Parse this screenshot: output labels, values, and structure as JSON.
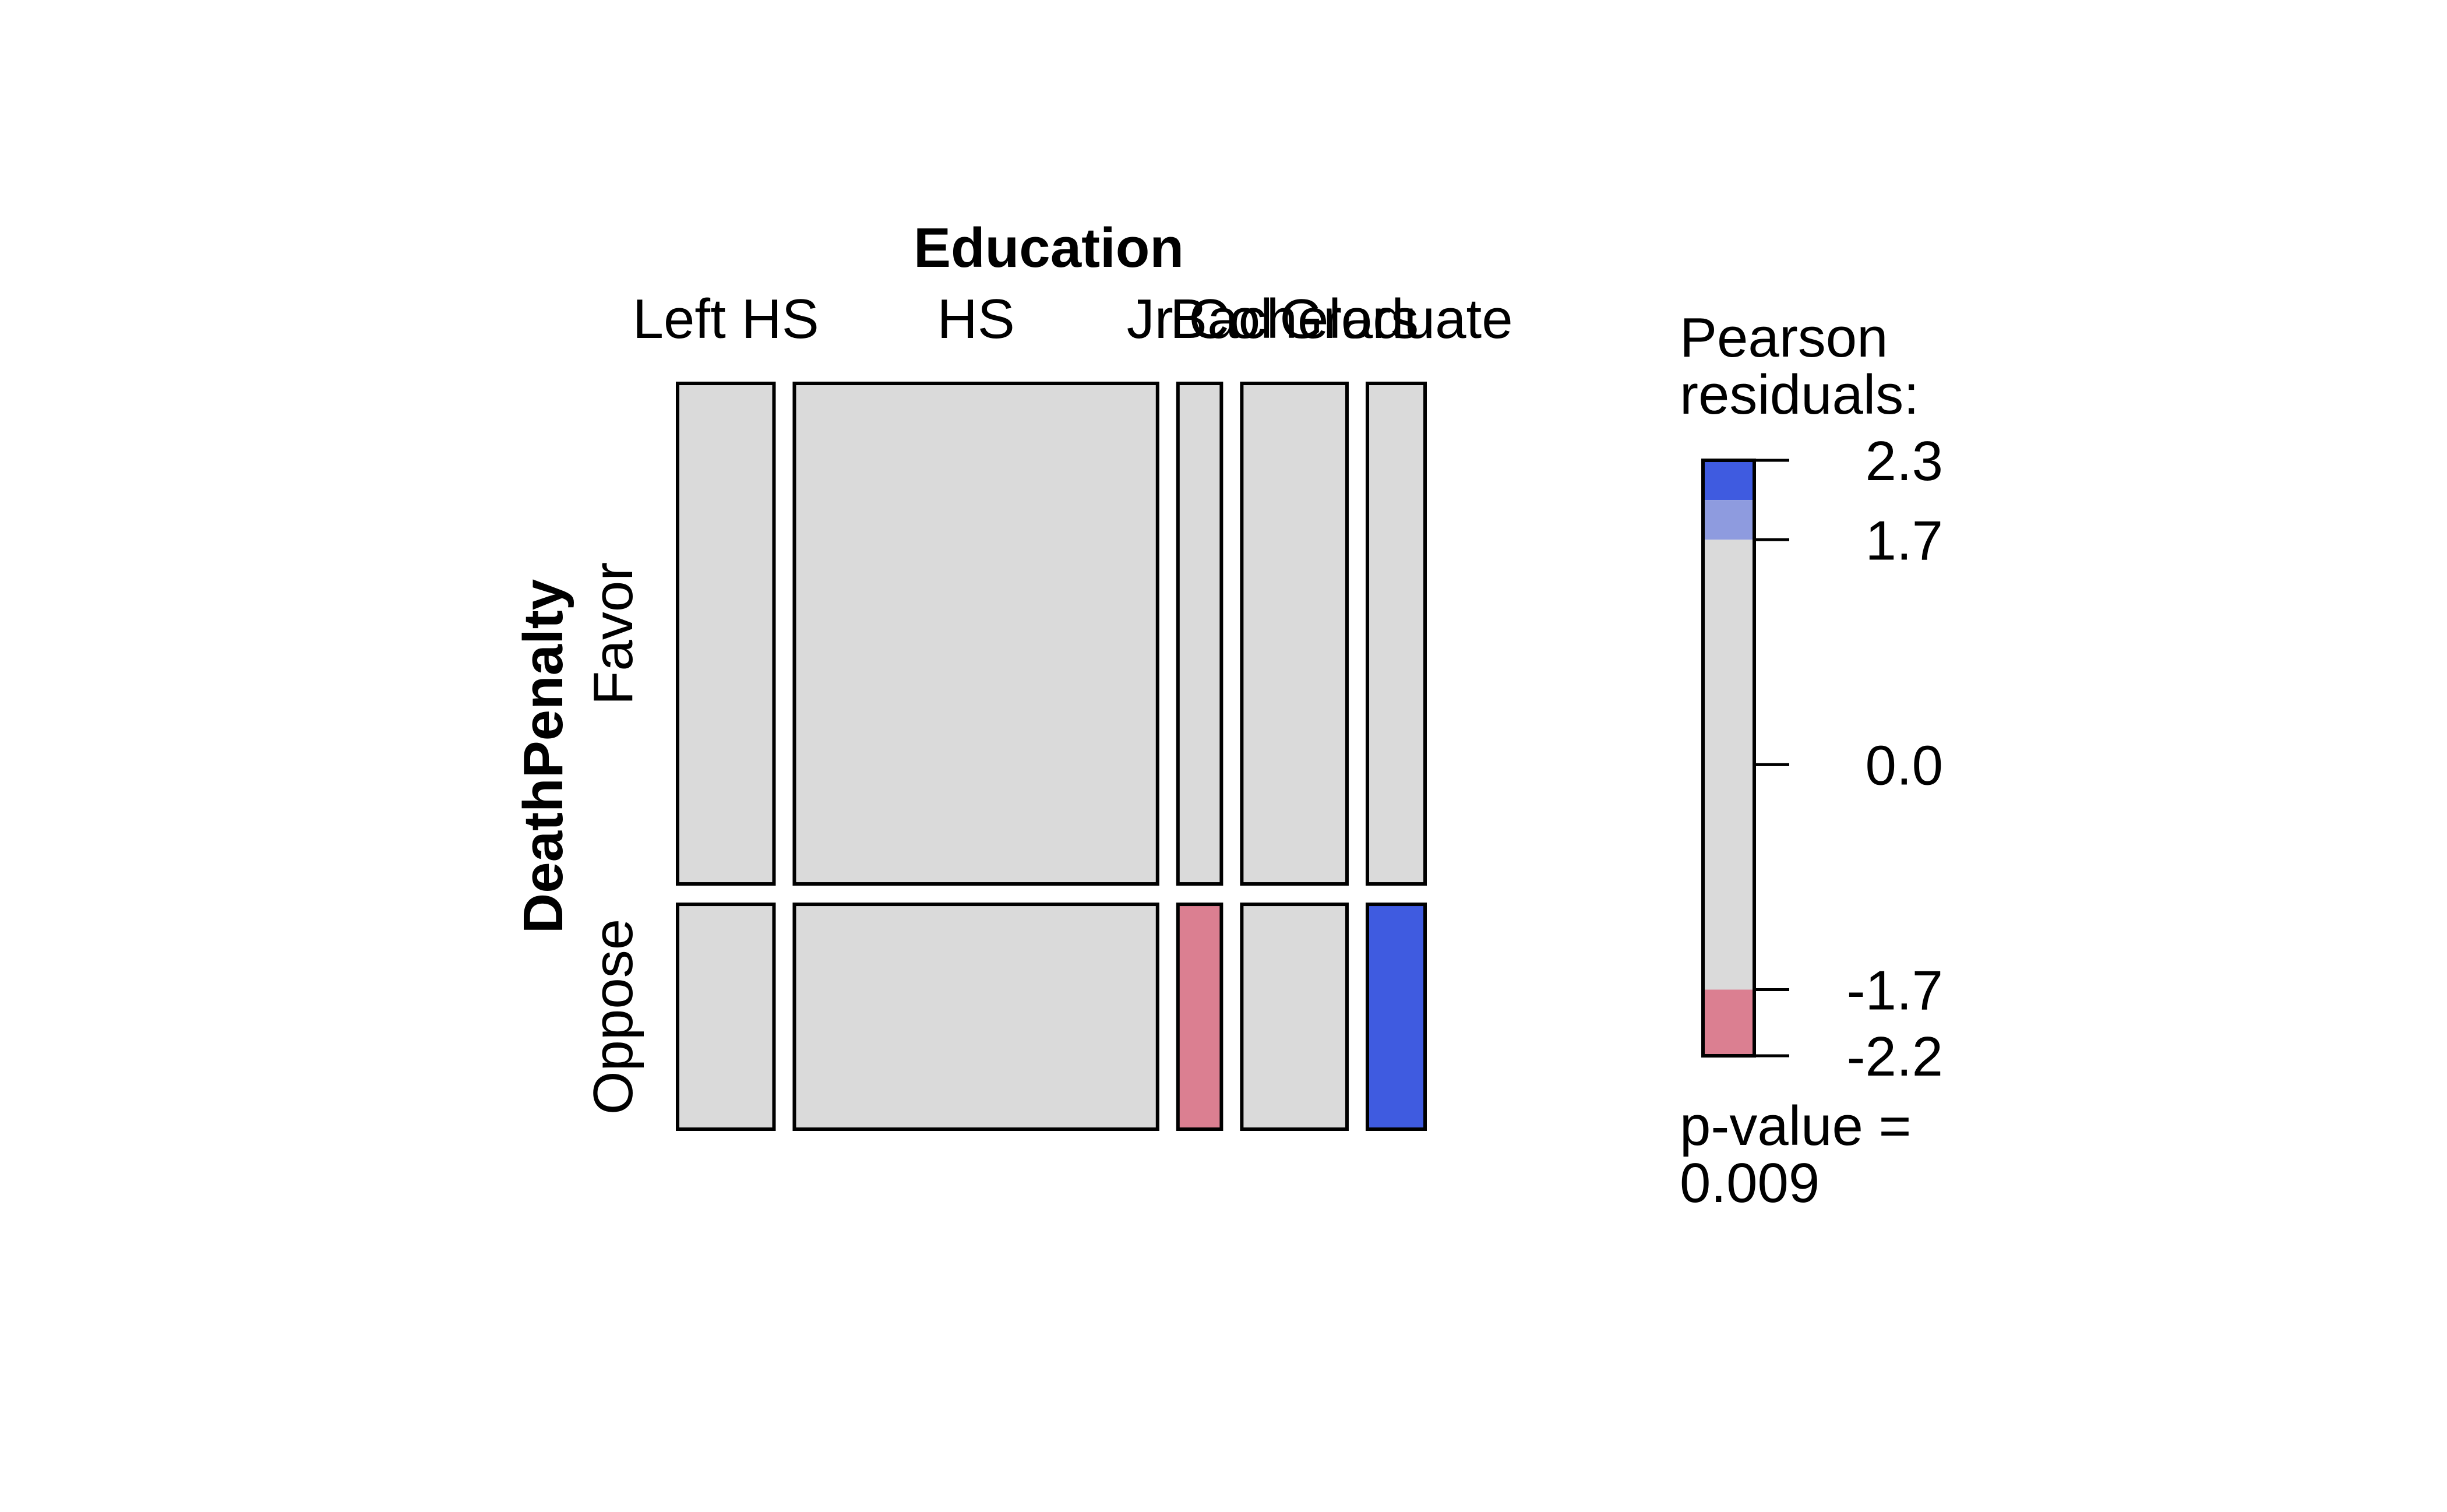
{
  "chart_data": {
    "type": "mosaic",
    "column_variable": "Education",
    "row_variable": "DeathPenalty",
    "columns": [
      "Left HS",
      "HS",
      "Jr Col",
      "Bachelors",
      "Graduate"
    ],
    "column_proportions": [
      0.142,
      0.535,
      0.064,
      0.155,
      0.085
    ],
    "rows": [
      "Favor",
      "Oppose"
    ],
    "row_proportions_within_column": [
      [
        0.69,
        0.31
      ],
      [
        0.69,
        0.31
      ],
      [
        0.69,
        0.31
      ],
      [
        0.69,
        0.31
      ],
      [
        0.69,
        0.31
      ]
    ],
    "cell_shading": [
      [
        "none",
        "none",
        "none",
        "none",
        "none"
      ],
      [
        "none",
        "none",
        "negative-1.7",
        "none",
        "positive-2"
      ]
    ],
    "colors": {
      "neutral": "#DADADA",
      "positive_strong": "#3F5BE0",
      "positive_mid": "#8E9BDF",
      "negative_mid": "#DB7F91",
      "border": "#000000"
    },
    "legend": {
      "title_line1": "Pearson",
      "title_line2": "residuals:",
      "ticks": [
        "2.3",
        "1.7",
        "0.0",
        "-1.7",
        "-2.2"
      ],
      "tick_values": [
        2.3,
        1.7,
        0.0,
        -1.7,
        -2.2
      ],
      "range": [
        -2.2,
        2.3
      ],
      "bands": [
        {
          "from": 2.0,
          "to": 2.3,
          "color": "#3F5BE0"
        },
        {
          "from": 1.7,
          "to": 2.0,
          "color": "#8E9BDF"
        },
        {
          "from": -1.7,
          "to": 1.7,
          "color": "#DADADA"
        },
        {
          "from": -2.2,
          "to": -1.7,
          "color": "#DB7F91"
        }
      ],
      "pvalue_line1": "p-value =",
      "pvalue_line2": "0.009"
    }
  }
}
